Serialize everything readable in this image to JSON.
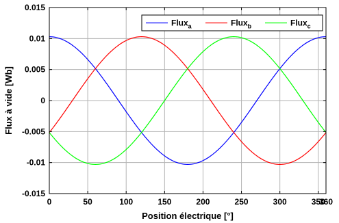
{
  "chart_data": {
    "type": "line",
    "xlabel": "Position électrique [°]",
    "ylabel": "Flux à vide [Wb]",
    "xlim": [
      0,
      360
    ],
    "ylim": [
      -0.015,
      0.015
    ],
    "x_ticks": [
      "0",
      "50",
      "100",
      "150",
      "200",
      "250",
      "300",
      "350"
    ],
    "x_tick_values": [
      0,
      50,
      100,
      150,
      200,
      250,
      300,
      350
    ],
    "x_end_label": "360",
    "y_ticks": [
      "0.015",
      "0.01",
      "0.005",
      "0",
      "-0.005",
      "-0.01",
      "-0.015"
    ],
    "y_tick_values": [
      0.015,
      0.01,
      0.005,
      0,
      -0.005,
      -0.01,
      -0.015
    ],
    "grid": true,
    "legend_position": "top-right",
    "x": [
      0,
      30,
      60,
      90,
      120,
      150,
      180,
      210,
      240,
      270,
      300,
      330,
      360
    ],
    "series": [
      {
        "name": "Flux",
        "subscript": "a",
        "color": "#0000ff",
        "amplitude": 0.0103,
        "phase_deg": 0,
        "values": [
          0.0103,
          0.0089,
          0.0052,
          0.0,
          -0.0052,
          -0.0089,
          -0.0103,
          -0.0089,
          -0.0052,
          0.0,
          0.0052,
          0.0089,
          0.0103
        ]
      },
      {
        "name": "Flux",
        "subscript": "b",
        "color": "#ff0000",
        "amplitude": 0.0103,
        "phase_deg": 120,
        "values": [
          -0.0052,
          0.0,
          0.0052,
          0.0089,
          0.0103,
          0.0089,
          0.0052,
          0.0,
          -0.0052,
          -0.0089,
          -0.0103,
          -0.0089,
          -0.0052
        ]
      },
      {
        "name": "Flux",
        "subscript": "c",
        "color": "#00ff00",
        "amplitude": 0.0103,
        "phase_deg": 240,
        "values": [
          -0.0052,
          -0.0089,
          -0.0103,
          -0.0089,
          -0.0052,
          0.0,
          0.0052,
          0.0089,
          0.0103,
          0.0089,
          0.0052,
          0.0,
          -0.0052
        ]
      }
    ]
  }
}
